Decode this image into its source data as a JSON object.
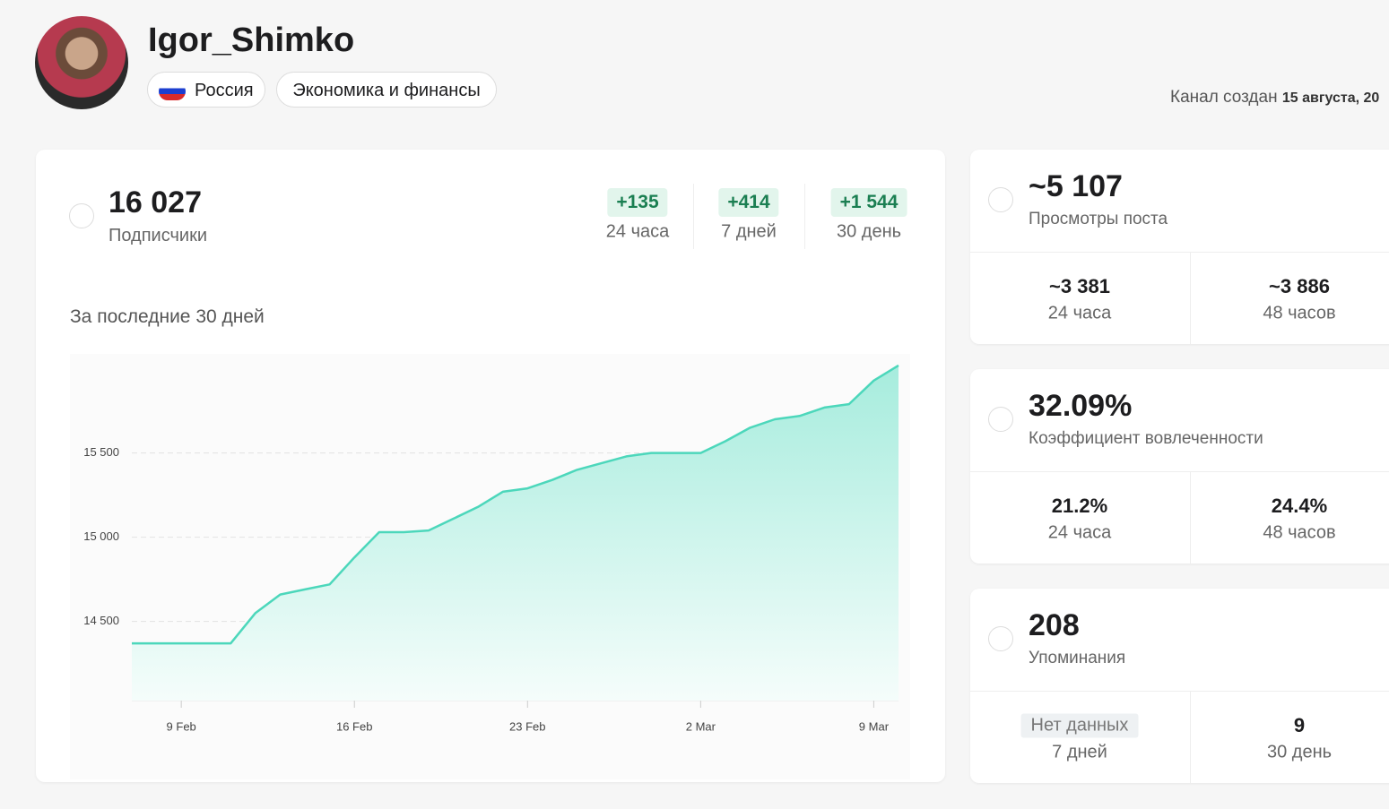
{
  "header": {
    "name": "Igor_Shimko",
    "tags": [
      "Россия",
      "Экономика и финансы"
    ],
    "created_label": "Канал создан",
    "created_date": "15 августа, 20"
  },
  "subscribers": {
    "value": "16 027",
    "label": "Подписчики",
    "deltas": [
      {
        "value": "+135",
        "period": "24 часа"
      },
      {
        "value": "+414",
        "period": "7 дней"
      },
      {
        "value": "+1 544",
        "period": "30 день"
      }
    ]
  },
  "chart_data": {
    "type": "line",
    "title": "За последние 30 дней",
    "categories": [
      null,
      null,
      "9 Feb",
      null,
      null,
      null,
      null,
      null,
      null,
      "16 Feb",
      null,
      null,
      null,
      null,
      null,
      null,
      "23 Feb",
      null,
      null,
      null,
      null,
      null,
      null,
      "2 Mar",
      null,
      null,
      null,
      null,
      null,
      null,
      "9 Mar",
      null
    ],
    "values": [
      14370,
      14370,
      14370,
      14370,
      14370,
      14550,
      14660,
      14690,
      14720,
      14880,
      15030,
      15030,
      15040,
      15110,
      15180,
      15270,
      15290,
      15340,
      15400,
      15440,
      15480,
      15500,
      15500,
      15500,
      15570,
      15650,
      15700,
      15720,
      15770,
      15790,
      15930,
      16020
    ],
    "color": "#4cd7bb",
    "ylim": [
      14030,
      16030
    ],
    "yticks": [
      {
        "value": 14500,
        "label": "14 500"
      },
      {
        "value": 15000,
        "label": "15 000"
      },
      {
        "value": 15500,
        "label": "15 500"
      }
    ],
    "grid": true
  },
  "stats": [
    {
      "value": "~5 107",
      "label": "Просмотры поста",
      "sub": [
        {
          "value": "~3 381",
          "period": "24 часа"
        },
        {
          "value": "~3 886",
          "period": "48 часов"
        }
      ]
    },
    {
      "value": "32.09%",
      "label": "Коэффициент вовлеченности",
      "sub": [
        {
          "value": "21.2%",
          "period": "24 часа"
        },
        {
          "value": "24.4%",
          "period": "48 часов"
        }
      ]
    },
    {
      "value": "208",
      "label": "Упоминания",
      "sub": [
        {
          "value": "Нет данных",
          "period": "7 дней"
        },
        {
          "value": "9",
          "period": "30 день"
        }
      ]
    }
  ]
}
